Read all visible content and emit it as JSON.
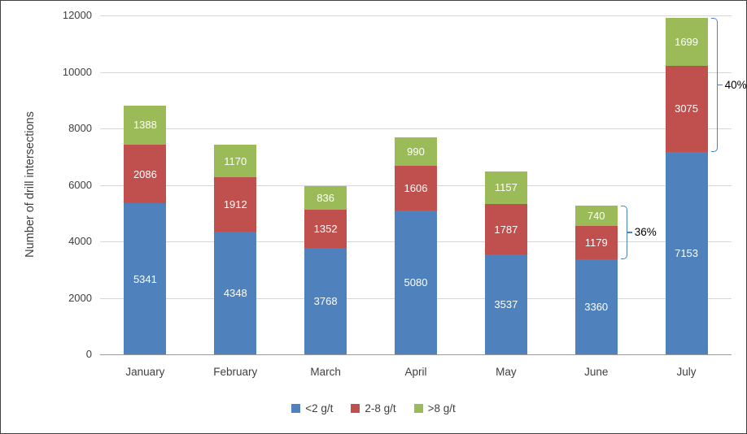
{
  "chart_data": {
    "type": "bar",
    "stacked": true,
    "title": "",
    "xlabel": "",
    "ylabel": "Number of drill intersections",
    "ylim": [
      0,
      12000
    ],
    "ytick_step": 2000,
    "grid": true,
    "legend_position": "bottom",
    "categories": [
      "January",
      "February",
      "March",
      "April",
      "May",
      "June",
      "July"
    ],
    "series": [
      {
        "name": "<2 g/t",
        "color": "#4F81BD",
        "values": [
          5341,
          4348,
          3768,
          5080,
          3537,
          3360,
          7153
        ]
      },
      {
        "name": "2-8 g/t",
        "color": "#C0504D",
        "values": [
          2086,
          1912,
          1352,
          1606,
          1787,
          1179,
          3075
        ]
      },
      {
        "name": ">8 g/t",
        "color": "#9BBB59",
        "values": [
          1388,
          1170,
          836,
          990,
          1157,
          740,
          1699
        ]
      }
    ],
    "value_label_color": "#ffffff",
    "annotations": [
      {
        "category": "June",
        "label": "36%",
        "from_series": 1,
        "to_series": 2,
        "color": "#4F81BD"
      },
      {
        "category": "July",
        "label": "40%",
        "from_series": 1,
        "to_series": 2,
        "color": "#4F81BD"
      }
    ]
  }
}
